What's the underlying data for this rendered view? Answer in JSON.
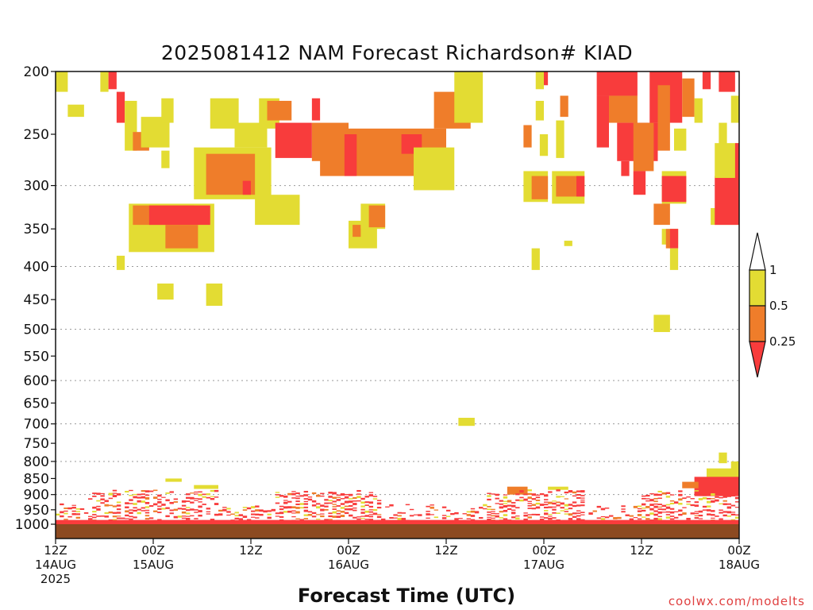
{
  "chart_data": {
    "type": "heatmap",
    "title": "2025081412 NAM Forecast Richardson# KIAD",
    "xlabel": "Forecast Time (UTC)",
    "credit": "coolwx.com/modelts",
    "y_axis": {
      "scale": "log-pressure",
      "range": [
        1000,
        200
      ],
      "ticks": [
        200,
        250,
        300,
        350,
        400,
        450,
        500,
        550,
        600,
        650,
        700,
        750,
        800,
        850,
        900,
        950,
        1000
      ],
      "gridlines": [
        300,
        400,
        500,
        600,
        700,
        800,
        900
      ]
    },
    "x_axis": {
      "range": [
        0,
        84
      ],
      "unit": "forecast hour",
      "ticks": [
        {
          "hour": 0,
          "line1": "12Z",
          "line2": "14AUG",
          "line3": "2025"
        },
        {
          "hour": 12,
          "line1": "00Z",
          "line2": "15AUG",
          "line3": ""
        },
        {
          "hour": 24,
          "line1": "12Z",
          "line2": "",
          "line3": ""
        },
        {
          "hour": 36,
          "line1": "00Z",
          "line2": "16AUG",
          "line3": ""
        },
        {
          "hour": 48,
          "line1": "12Z",
          "line2": "",
          "line3": ""
        },
        {
          "hour": 60,
          "line1": "00Z",
          "line2": "17AUG",
          "line3": ""
        },
        {
          "hour": 72,
          "line1": "12Z",
          "line2": "",
          "line3": ""
        },
        {
          "hour": 84,
          "line1": "00Z",
          "line2": "18AUG",
          "line3": ""
        }
      ]
    },
    "colorbar": {
      "labels": [
        "1",
        "0.5",
        "0.25"
      ],
      "colors": {
        "yellow": "#e3dc33",
        "orange": "#ef7d2a",
        "red": "#f83c3c",
        "ground": "#8c4a21"
      }
    },
    "levels": {
      "red": "Ri < 0.25",
      "orange": "0.25 - 0.5",
      "yellow": "0.5 - 1"
    },
    "regions": [
      {
        "c": "y",
        "h0": 0,
        "h1": 1.5,
        "p0": 200,
        "p1": 215
      },
      {
        "c": "y",
        "h0": 1.5,
        "h1": 3.5,
        "p0": 225,
        "p1": 235
      },
      {
        "c": "y",
        "h0": 5.5,
        "h1": 6.5,
        "p0": 200,
        "p1": 215
      },
      {
        "c": "r",
        "h0": 6.5,
        "h1": 7.5,
        "p0": 200,
        "p1": 213
      },
      {
        "c": "r",
        "h0": 7.5,
        "h1": 8.5,
        "p0": 215,
        "p1": 240
      },
      {
        "c": "y",
        "h0": 8.5,
        "h1": 10,
        "p0": 222,
        "p1": 265
      },
      {
        "c": "o",
        "h0": 9.5,
        "h1": 11.5,
        "p0": 248,
        "p1": 265
      },
      {
        "c": "y",
        "h0": 10.5,
        "h1": 14,
        "p0": 235,
        "p1": 262
      },
      {
        "c": "y",
        "h0": 13,
        "h1": 14.5,
        "p0": 220,
        "p1": 240
      },
      {
        "c": "y",
        "h0": 13,
        "h1": 14,
        "p0": 265,
        "p1": 282
      },
      {
        "c": "y",
        "h0": 19,
        "h1": 22.5,
        "p0": 220,
        "p1": 245
      },
      {
        "c": "y",
        "h0": 22,
        "h1": 26,
        "p0": 240,
        "p1": 262
      },
      {
        "c": "y",
        "h0": 17,
        "h1": 26.5,
        "p0": 262,
        "p1": 315
      },
      {
        "c": "o",
        "h0": 18.5,
        "h1": 24.5,
        "p0": 268,
        "p1": 310
      },
      {
        "c": "r",
        "h0": 23,
        "h1": 24,
        "p0": 295,
        "p1": 310
      },
      {
        "c": "y",
        "h0": 25,
        "h1": 27.5,
        "p0": 220,
        "p1": 245
      },
      {
        "c": "y",
        "h0": 24.5,
        "h1": 30,
        "p0": 310,
        "p1": 345
      },
      {
        "c": "y",
        "h0": 9,
        "h1": 19.5,
        "p0": 320,
        "p1": 380
      },
      {
        "c": "o",
        "h0": 9.5,
        "h1": 17,
        "p0": 322,
        "p1": 345
      },
      {
        "c": "r",
        "h0": 11.5,
        "h1": 19,
        "p0": 322,
        "p1": 345
      },
      {
        "c": "o",
        "h0": 13.5,
        "h1": 17.5,
        "p0": 345,
        "p1": 375
      },
      {
        "c": "y",
        "h0": 7.5,
        "h1": 8.5,
        "p0": 385,
        "p1": 405
      },
      {
        "c": "y",
        "h0": 12.5,
        "h1": 14.5,
        "p0": 425,
        "p1": 450
      },
      {
        "c": "y",
        "h0": 18.5,
        "h1": 20.5,
        "p0": 425,
        "p1": 460
      },
      {
        "c": "o",
        "h0": 26,
        "h1": 29,
        "p0": 222,
        "p1": 238
      },
      {
        "c": "r",
        "h0": 27,
        "h1": 31.5,
        "p0": 240,
        "p1": 272
      },
      {
        "c": "o",
        "h0": 31.5,
        "h1": 36,
        "p0": 240,
        "p1": 275
      },
      {
        "c": "r",
        "h0": 31.5,
        "h1": 32.5,
        "p0": 220,
        "p1": 238
      },
      {
        "c": "o",
        "h0": 32.5,
        "h1": 48,
        "p0": 245,
        "p1": 290
      },
      {
        "c": "r",
        "h0": 35.5,
        "h1": 37,
        "p0": 250,
        "p1": 290
      },
      {
        "c": "r",
        "h0": 42.5,
        "h1": 45,
        "p0": 250,
        "p1": 268
      },
      {
        "c": "y",
        "h0": 44,
        "h1": 49,
        "p0": 262,
        "p1": 305
      },
      {
        "c": "o",
        "h0": 46.5,
        "h1": 51,
        "p0": 215,
        "p1": 245
      },
      {
        "c": "y",
        "h0": 49,
        "h1": 52.5,
        "p0": 200,
        "p1": 240
      },
      {
        "c": "y",
        "h0": 36,
        "h1": 39.5,
        "p0": 340,
        "p1": 375
      },
      {
        "c": "o",
        "h0": 36.5,
        "h1": 37.5,
        "p0": 345,
        "p1": 360
      },
      {
        "c": "y",
        "h0": 37.5,
        "h1": 40.5,
        "p0": 320,
        "p1": 350
      },
      {
        "c": "o",
        "h0": 38.5,
        "h1": 40.5,
        "p0": 322,
        "p1": 348
      },
      {
        "c": "y",
        "h0": 59,
        "h1": 60,
        "p0": 200,
        "p1": 213
      },
      {
        "c": "r",
        "h0": 60,
        "h1": 60.5,
        "p0": 200,
        "p1": 210
      },
      {
        "c": "y",
        "h0": 59,
        "h1": 60,
        "p0": 222,
        "p1": 238
      },
      {
        "c": "o",
        "h0": 62,
        "h1": 63,
        "p0": 218,
        "p1": 235
      },
      {
        "c": "y",
        "h0": 61.5,
        "h1": 62.5,
        "p0": 238,
        "p1": 272
      },
      {
        "c": "o",
        "h0": 57.5,
        "h1": 58.5,
        "p0": 242,
        "p1": 262
      },
      {
        "c": "y",
        "h0": 59.5,
        "h1": 60.5,
        "p0": 250,
        "p1": 270
      },
      {
        "c": "y",
        "h0": 57.5,
        "h1": 60.5,
        "p0": 285,
        "p1": 318
      },
      {
        "c": "o",
        "h0": 58.5,
        "h1": 60.5,
        "p0": 290,
        "p1": 315
      },
      {
        "c": "y",
        "h0": 61,
        "h1": 65,
        "p0": 285,
        "p1": 320
      },
      {
        "c": "o",
        "h0": 61.5,
        "h1": 64,
        "p0": 290,
        "p1": 312
      },
      {
        "c": "r",
        "h0": 64,
        "h1": 65,
        "p0": 290,
        "p1": 312
      },
      {
        "c": "y",
        "h0": 58.5,
        "h1": 59.5,
        "p0": 375,
        "p1": 405
      },
      {
        "c": "y",
        "h0": 62.5,
        "h1": 63.5,
        "p0": 365,
        "p1": 372
      },
      {
        "c": "r",
        "h0": 66.5,
        "h1": 71.5,
        "p0": 200,
        "p1": 218
      },
      {
        "c": "r",
        "h0": 66.5,
        "h1": 68,
        "p0": 218,
        "p1": 262
      },
      {
        "c": "o",
        "h0": 68,
        "h1": 71.5,
        "p0": 218,
        "p1": 240
      },
      {
        "c": "r",
        "h0": 69,
        "h1": 74,
        "p0": 240,
        "p1": 275
      },
      {
        "c": "o",
        "h0": 71,
        "h1": 73.5,
        "p0": 240,
        "p1": 285
      },
      {
        "c": "r",
        "h0": 69.5,
        "h1": 70.5,
        "p0": 275,
        "p1": 290
      },
      {
        "c": "r",
        "h0": 71,
        "h1": 72.5,
        "p0": 285,
        "p1": 310
      },
      {
        "c": "r",
        "h0": 73,
        "h1": 77,
        "p0": 200,
        "p1": 240
      },
      {
        "c": "o",
        "h0": 77,
        "h1": 78.5,
        "p0": 205,
        "p1": 235
      },
      {
        "c": "y",
        "h0": 78.5,
        "h1": 79.5,
        "p0": 220,
        "p1": 240
      },
      {
        "c": "o",
        "h0": 74,
        "h1": 75.5,
        "p0": 210,
        "p1": 265
      },
      {
        "c": "y",
        "h0": 76,
        "h1": 77.5,
        "p0": 245,
        "p1": 265
      },
      {
        "c": "r",
        "h0": 79.5,
        "h1": 80.5,
        "p0": 200,
        "p1": 213
      },
      {
        "c": "r",
        "h0": 81.5,
        "h1": 83.5,
        "p0": 200,
        "p1": 215
      },
      {
        "c": "y",
        "h0": 83,
        "h1": 84,
        "p0": 218,
        "p1": 240
      },
      {
        "c": "y",
        "h0": 81.5,
        "h1": 82.5,
        "p0": 240,
        "p1": 262
      },
      {
        "c": "y",
        "h0": 74.5,
        "h1": 77.5,
        "p0": 285,
        "p1": 320
      },
      {
        "c": "r",
        "h0": 74.5,
        "h1": 77.5,
        "p0": 290,
        "p1": 318
      },
      {
        "c": "o",
        "h0": 73.5,
        "h1": 75.5,
        "p0": 320,
        "p1": 345
      },
      {
        "c": "y",
        "h0": 74.5,
        "h1": 76.5,
        "p0": 350,
        "p1": 370
      },
      {
        "c": "o",
        "h0": 75,
        "h1": 76.5,
        "p0": 350,
        "p1": 375
      },
      {
        "c": "r",
        "h0": 75.5,
        "h1": 76.5,
        "p0": 350,
        "p1": 375
      },
      {
        "c": "y",
        "h0": 75.5,
        "h1": 76.5,
        "p0": 375,
        "p1": 405
      },
      {
        "c": "y",
        "h0": 80.5,
        "h1": 84,
        "p0": 325,
        "p1": 345
      },
      {
        "c": "r",
        "h0": 81,
        "h1": 84,
        "p0": 290,
        "p1": 345
      },
      {
        "c": "y",
        "h0": 81,
        "h1": 84,
        "p0": 258,
        "p1": 292
      },
      {
        "c": "r",
        "h0": 83.5,
        "h1": 84,
        "p0": 258,
        "p1": 300
      },
      {
        "c": "y",
        "h0": 73.5,
        "h1": 75.5,
        "p0": 475,
        "p1": 505
      },
      {
        "c": "y",
        "h0": 49.5,
        "h1": 51.5,
        "p0": 685,
        "p1": 705
      },
      {
        "c": "y",
        "h0": 81.5,
        "h1": 82.5,
        "p0": 775,
        "p1": 805
      },
      {
        "c": "y",
        "h0": 83,
        "h1": 84,
        "p0": 800,
        "p1": 860
      },
      {
        "c": "y",
        "h0": 80,
        "h1": 84,
        "p0": 820,
        "p1": 860
      },
      {
        "c": "r",
        "h0": 78.5,
        "h1": 84,
        "p0": 845,
        "p1": 905
      },
      {
        "c": "o",
        "h0": 77,
        "h1": 79,
        "p0": 860,
        "p1": 880
      },
      {
        "c": "o",
        "h0": 55.5,
        "h1": 58,
        "p0": 875,
        "p1": 900
      },
      {
        "c": "y",
        "h0": 60.5,
        "h1": 63,
        "p0": 875,
        "p1": 885
      },
      {
        "c": "y",
        "h0": 13.5,
        "h1": 15.5,
        "p0": 850,
        "p1": 860
      },
      {
        "c": "y",
        "h0": 17,
        "h1": 20,
        "p0": 870,
        "p1": 882
      }
    ],
    "low_level_bands": [
      {
        "h0": 0,
        "h1": 4,
        "p0": 925,
        "p1": 990,
        "density": 0.55
      },
      {
        "h0": 4,
        "h1": 20,
        "p0": 880,
        "p1": 990,
        "density": 0.6
      },
      {
        "h0": 20,
        "h1": 27,
        "p0": 930,
        "p1": 995,
        "density": 0.45
      },
      {
        "h0": 27,
        "h1": 40,
        "p0": 885,
        "p1": 995,
        "density": 0.7
      },
      {
        "h0": 40,
        "h1": 53,
        "p0": 930,
        "p1": 995,
        "density": 0.45
      },
      {
        "h0": 53,
        "h1": 65,
        "p0": 880,
        "p1": 995,
        "density": 0.7
      },
      {
        "h0": 65,
        "h1": 72,
        "p0": 935,
        "p1": 995,
        "density": 0.35
      },
      {
        "h0": 72,
        "h1": 84,
        "p0": 885,
        "p1": 995,
        "density": 0.65
      }
    ]
  }
}
